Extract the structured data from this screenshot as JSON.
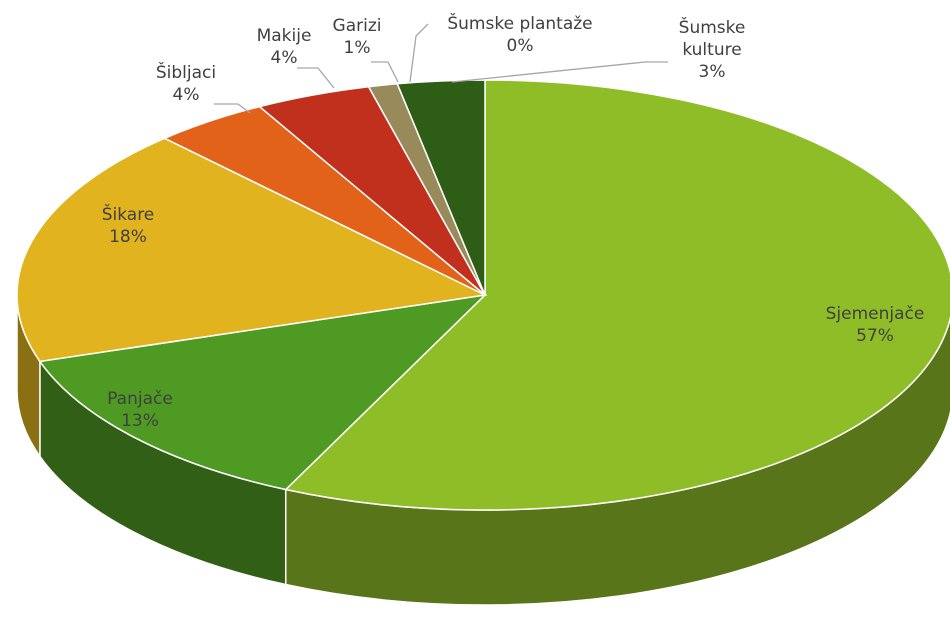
{
  "chart_data": {
    "type": "pie",
    "categories": [
      "Sjemenjače",
      "Panjače",
      "Šikare",
      "Šibljaci",
      "Makije",
      "Garizi",
      "Šumske plantaže",
      "Šumske kulture"
    ],
    "values": [
      57,
      13,
      18,
      4,
      4,
      1,
      0,
      3
    ],
    "value_labels": [
      "57%",
      "13%",
      "18%",
      "4%",
      "4%",
      "1%",
      "0%",
      "3%"
    ],
    "colors": [
      "#8fbd28",
      "#4e9a22",
      "#e0b31f",
      "#e2621a",
      "#c0301c",
      "#998a5c",
      "#7a8c3a",
      "#2e5e16"
    ]
  }
}
